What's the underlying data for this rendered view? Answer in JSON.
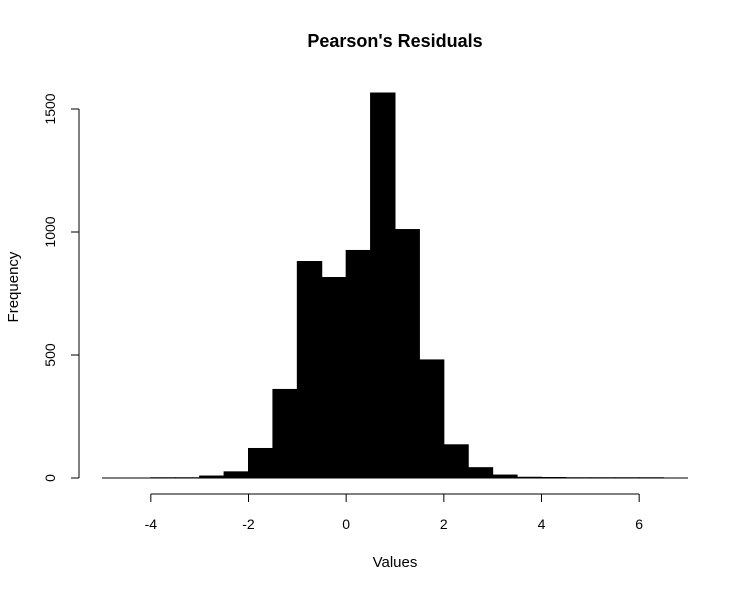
{
  "chart_data": {
    "type": "bar",
    "title": "Pearson's Residuals",
    "xlabel": "Values",
    "ylabel": "Frequency",
    "xlim": [
      -5,
      7
    ],
    "ylim": [
      0,
      1600
    ],
    "xticks": [
      -4,
      -2,
      0,
      2,
      4,
      6
    ],
    "yticks": [
      0,
      500,
      1000,
      1500
    ],
    "bin_width": 0.5,
    "bins": [
      {
        "x0": -5.0,
        "x1": -4.5,
        "count": 0
      },
      {
        "x0": -4.5,
        "x1": -4.0,
        "count": 0
      },
      {
        "x0": -4.0,
        "x1": -3.5,
        "count": 1
      },
      {
        "x0": -3.5,
        "x1": -3.0,
        "count": 1
      },
      {
        "x0": -3.0,
        "x1": -2.5,
        "count": 8
      },
      {
        "x0": -2.5,
        "x1": -2.0,
        "count": 25
      },
      {
        "x0": -2.0,
        "x1": -1.5,
        "count": 120
      },
      {
        "x0": -1.5,
        "x1": -1.0,
        "count": 360
      },
      {
        "x0": -1.0,
        "x1": -0.5,
        "count": 880
      },
      {
        "x0": -0.5,
        "x1": 0.0,
        "count": 815
      },
      {
        "x0": 0.0,
        "x1": 0.5,
        "count": 925
      },
      {
        "x0": 0.5,
        "x1": 1.0,
        "count": 1565
      },
      {
        "x0": 1.0,
        "x1": 1.5,
        "count": 1010
      },
      {
        "x0": 1.5,
        "x1": 2.0,
        "count": 480
      },
      {
        "x0": 2.0,
        "x1": 2.5,
        "count": 135
      },
      {
        "x0": 2.5,
        "x1": 3.0,
        "count": 42
      },
      {
        "x0": 3.0,
        "x1": 3.5,
        "count": 12
      },
      {
        "x0": 3.5,
        "x1": 4.0,
        "count": 3
      },
      {
        "x0": 4.0,
        "x1": 4.5,
        "count": 2
      },
      {
        "x0": 4.5,
        "x1": 5.0,
        "count": 1
      },
      {
        "x0": 5.0,
        "x1": 5.5,
        "count": 1
      },
      {
        "x0": 5.5,
        "x1": 6.0,
        "count": 1
      },
      {
        "x0": 6.0,
        "x1": 6.5,
        "count": 1
      },
      {
        "x0": 6.5,
        "x1": 7.0,
        "count": 0
      }
    ],
    "colors": {
      "bar_fill": "#000000",
      "bar_stroke": "#000000",
      "background": "#ffffff"
    },
    "grid": false,
    "legend": "none"
  }
}
